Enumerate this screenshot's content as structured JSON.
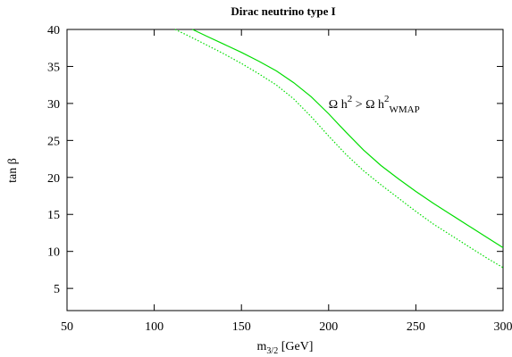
{
  "chart_data": {
    "type": "line",
    "title": "Dirac neutrino type I",
    "xlabel": {
      "main": "m",
      "sub": "3/2",
      "unit": "[GeV]"
    },
    "ylabel": "tan β",
    "xlim": [
      50,
      300
    ],
    "ylim": [
      2,
      40
    ],
    "xticks": [
      50,
      100,
      150,
      200,
      250,
      300
    ],
    "yticks": [
      5,
      10,
      15,
      20,
      25,
      30,
      35,
      40
    ],
    "grid": false,
    "series": [
      {
        "style": "solid",
        "color": "#00dd00",
        "x": [
          122,
          130,
          140,
          150,
          160,
          170,
          180,
          190,
          200,
          210,
          220,
          230,
          240,
          250,
          260,
          270,
          280,
          290,
          300
        ],
        "y": [
          40,
          39.1,
          38.0,
          36.9,
          35.7,
          34.4,
          32.8,
          30.9,
          28.6,
          26.1,
          23.7,
          21.6,
          19.8,
          18.1,
          16.5,
          15.0,
          13.5,
          12.0,
          10.5
        ]
      },
      {
        "style": "dotted",
        "color": "#00dd00",
        "x": [
          112,
          120,
          130,
          140,
          150,
          160,
          170,
          180,
          190,
          200,
          210,
          220,
          230,
          240,
          250,
          260,
          270,
          280,
          290,
          300
        ],
        "y": [
          40,
          39.1,
          37.9,
          36.7,
          35.4,
          34.0,
          32.5,
          30.6,
          28.2,
          25.6,
          23.1,
          20.9,
          19.0,
          17.2,
          15.4,
          13.7,
          12.2,
          10.7,
          9.2,
          7.8
        ]
      }
    ],
    "annotations": [
      {
        "x": 200,
        "y": 30,
        "parts": [
          {
            "text": "Ω h",
            "shift": "none"
          },
          {
            "text": "2",
            "shift": "super"
          },
          {
            "text": " > Ω h",
            "shift": "none"
          },
          {
            "text": "2",
            "shift": "super"
          },
          {
            "text": "WMAP",
            "shift": "sub"
          }
        ]
      }
    ]
  }
}
